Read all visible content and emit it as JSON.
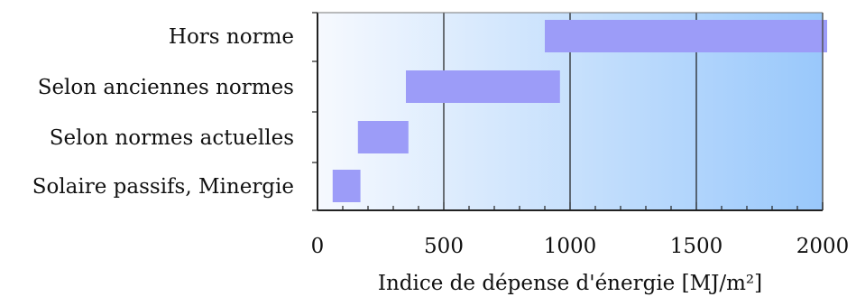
{
  "chart_data": {
    "type": "bar",
    "orientation": "horizontal-range",
    "categories": [
      "Hors norme",
      "Selon anciennes normes",
      "Selon normes actuelles",
      "Solaire passifs, Minergie"
    ],
    "ranges": [
      [
        900,
        2020
      ],
      [
        350,
        960
      ],
      [
        160,
        360
      ],
      [
        60,
        170
      ]
    ],
    "xlabel": "Indice de dépense d'énergie [MJ/m²]",
    "xlim": [
      0,
      2000
    ],
    "xticks": [
      "0",
      "500",
      "1000",
      "1500",
      "2000"
    ],
    "grid": true,
    "colors": {
      "bar": "#9c9cf8",
      "background_light": "#f6f9fe",
      "background_dark": "#99c8fb",
      "axis": "#222222"
    }
  }
}
